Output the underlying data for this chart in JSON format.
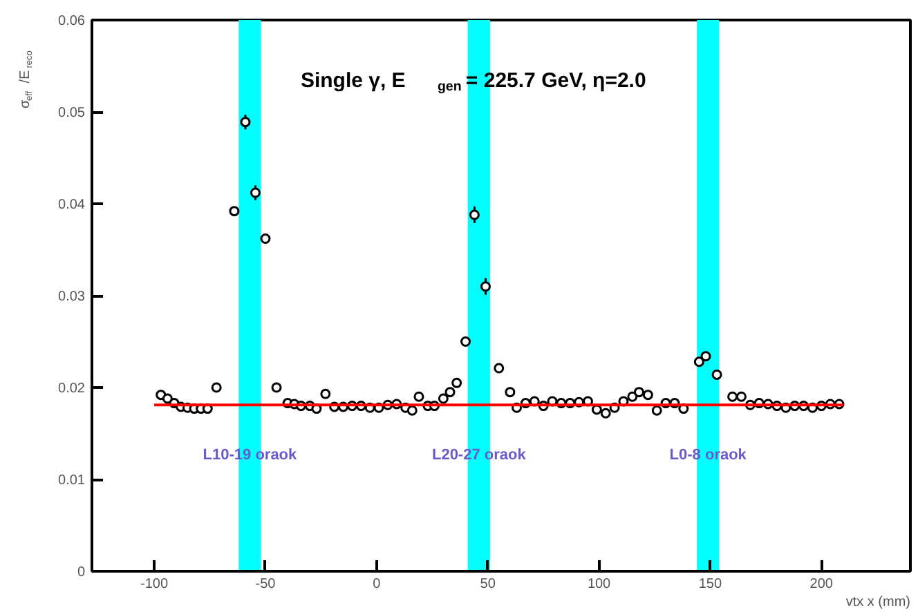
{
  "chart_data": {
    "type": "scatter",
    "xlabel": "vtx x (mm)",
    "ylabel": "σ$_{eff}$/E$_{reco}$",
    "annotations": [
      "Single γ, E$_{gen}$ = 225.7 GeV, η=2.0"
    ],
    "xlim": [
      -128,
      240
    ],
    "ylim": [
      0,
      0.06
    ],
    "xticks": [
      -100,
      -50,
      0,
      50,
      100,
      150,
      200
    ],
    "yticks": [
      0,
      0.01,
      0.02,
      0.03,
      0.04,
      0.05,
      0.06
    ],
    "grid": false,
    "bands": [
      {
        "axis": "x",
        "from": -62,
        "to": -52,
        "label": "L10-19 oraok",
        "color": "#00ffff"
      },
      {
        "axis": "x",
        "from": 41,
        "to": 51,
        "label": "L20-27 oraok",
        "color": "#00ffff"
      },
      {
        "axis": "x",
        "from": 144,
        "to": 154,
        "label": "L0-8 oraok",
        "color": "#00ffff"
      }
    ],
    "series": [
      {
        "color": "#000000",
        "marker": "circle",
        "x": [
          -97,
          -94,
          -91,
          -88,
          -85,
          -82,
          -79,
          -76,
          -72,
          -64,
          -59,
          -54.5,
          -50,
          -45,
          -40,
          -37,
          -34,
          -30,
          -27,
          -23,
          -19,
          -15,
          -11,
          -7,
          -3,
          1,
          5,
          9,
          13,
          16,
          19,
          23,
          26,
          30,
          33,
          36,
          40,
          44,
          49,
          55,
          60,
          63,
          67,
          71,
          75,
          79,
          83,
          87,
          91,
          95,
          99,
          103,
          107,
          111,
          115,
          118,
          122,
          126,
          130,
          134,
          138,
          145,
          148,
          153,
          160,
          164,
          168,
          172,
          176,
          180,
          184,
          188,
          192,
          196,
          200,
          204,
          208
        ],
        "values": [
          0.0192,
          0.0188,
          0.0183,
          0.0179,
          0.0178,
          0.0177,
          0.0177,
          0.0177,
          0.02,
          0.0392,
          0.0489,
          0.0412,
          0.0362,
          0.02,
          0.0183,
          0.0182,
          0.018,
          0.018,
          0.0177,
          0.0193,
          0.0179,
          0.0179,
          0.018,
          0.018,
          0.0178,
          0.0178,
          0.0181,
          0.0182,
          0.0178,
          0.0175,
          0.019,
          0.018,
          0.018,
          0.0188,
          0.0195,
          0.0205,
          0.025,
          0.0388,
          0.031,
          0.0221,
          0.0195,
          0.0178,
          0.0183,
          0.0185,
          0.018,
          0.0185,
          0.0183,
          0.0183,
          0.0184,
          0.0185,
          0.0176,
          0.0172,
          0.0178,
          0.0185,
          0.019,
          0.0195,
          0.0192,
          0.0175,
          0.0183,
          0.0183,
          0.0177,
          0.0228,
          0.0234,
          0.0214,
          0.019,
          0.019,
          0.0181,
          0.0183,
          0.0182,
          0.018,
          0.0178,
          0.018,
          0.018,
          0.0178,
          0.018,
          0.0182,
          0.0182
        ],
        "errors": [
          0.0003,
          0.0003,
          0.0003,
          0.0003,
          0.0003,
          0.0003,
          0.0003,
          0.0003,
          0.0004,
          0.0005,
          0.0008,
          0.0008,
          0.0005,
          0.0004,
          0.0003,
          0.0003,
          0.0003,
          0.0003,
          0.0003,
          0.0004,
          0.0003,
          0.0003,
          0.0003,
          0.0003,
          0.0003,
          0.0003,
          0.0003,
          0.0003,
          0.0003,
          0.0003,
          0.0004,
          0.0003,
          0.0003,
          0.0003,
          0.0003,
          0.0003,
          0.0004,
          0.0009,
          0.0009,
          0.0004,
          0.0004,
          0.0003,
          0.0003,
          0.0003,
          0.0003,
          0.0003,
          0.0003,
          0.0003,
          0.0003,
          0.0003,
          0.0003,
          0.0003,
          0.0003,
          0.0003,
          0.0003,
          0.0003,
          0.0003,
          0.0003,
          0.0003,
          0.0003,
          0.0003,
          0.0004,
          0.0005,
          0.0004,
          0.0003,
          0.0003,
          0.0003,
          0.0003,
          0.0003,
          0.0003,
          0.0003,
          0.0003,
          0.0003,
          0.0003,
          0.0003,
          0.0003,
          0.0003
        ]
      },
      {
        "type": "line",
        "color": "#ff0000",
        "x": [
          -100,
          210
        ],
        "values": [
          0.0181,
          0.0181
        ]
      }
    ]
  }
}
